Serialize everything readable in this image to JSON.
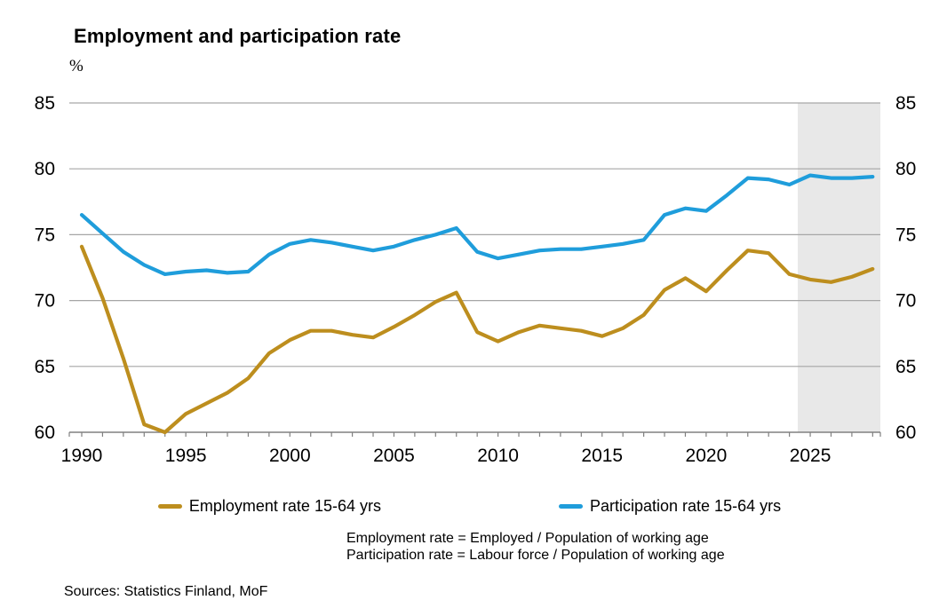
{
  "header": {
    "title": "Employment and participation rate",
    "unit": "%"
  },
  "chart_data": {
    "type": "line",
    "title": "Employment and participation rate",
    "ylabel": "%",
    "xlabel": "",
    "grid": "horizontal",
    "legend_position": "bottom",
    "ylim": [
      60,
      85
    ],
    "yticks": [
      60,
      65,
      70,
      75,
      80,
      85
    ],
    "xlim": [
      1989.4,
      2028.4
    ],
    "xticks_labeled": [
      1990,
      1995,
      2000,
      2005,
      2010,
      2015,
      2020,
      2025
    ],
    "xticks_minor_every": 1,
    "x": [
      1990,
      1991,
      1992,
      1993,
      1994,
      1995,
      1996,
      1997,
      1998,
      1999,
      2000,
      2001,
      2002,
      2003,
      2004,
      2005,
      2006,
      2007,
      2008,
      2009,
      2010,
      2011,
      2012,
      2013,
      2014,
      2015,
      2016,
      2017,
      2018,
      2019,
      2020,
      2021,
      2022,
      2023,
      2024,
      2025,
      2026,
      2027,
      2028
    ],
    "series": [
      {
        "name": "Employment rate 15-64 yrs",
        "color": "#BD8E1E",
        "values": [
          74.1,
          70.2,
          65.6,
          60.6,
          60.0,
          61.4,
          62.2,
          63.0,
          64.1,
          66.0,
          67.0,
          67.7,
          67.7,
          67.4,
          67.2,
          68.0,
          68.9,
          69.9,
          70.6,
          67.6,
          66.9,
          67.6,
          68.1,
          67.9,
          67.7,
          67.3,
          67.9,
          68.9,
          70.8,
          71.7,
          70.7,
          72.3,
          73.8,
          73.6,
          72.0,
          71.6,
          71.4,
          71.8,
          72.4
        ]
      },
      {
        "name": "Participation rate 15-64 yrs",
        "color": "#1F9DDB",
        "values": [
          76.5,
          75.1,
          73.7,
          72.7,
          72.0,
          72.2,
          72.3,
          72.1,
          72.2,
          73.5,
          74.3,
          74.6,
          74.4,
          74.1,
          73.8,
          74.1,
          74.6,
          75.0,
          75.5,
          73.7,
          73.2,
          73.5,
          73.8,
          73.9,
          73.9,
          74.1,
          74.3,
          74.6,
          76.5,
          77.0,
          76.8,
          78.0,
          79.3,
          79.2,
          78.8,
          79.5,
          79.3,
          79.3,
          79.4
        ]
      }
    ],
    "forecast_band": {
      "start": 2024.4,
      "color": "#E8E8E8"
    },
    "colors": {
      "gridline": "#A6A6A6",
      "axis": "#808080",
      "text": "#000000"
    }
  },
  "legend": {
    "items": [
      {
        "label": "Employment rate 15-64 yrs"
      },
      {
        "label": "Participation rate 15-64 yrs"
      }
    ]
  },
  "notes": {
    "line1": "Employment rate = Employed / Population of working age",
    "line2": "Participation rate = Labour force / Population of working age"
  },
  "sources": "Sources: Statistics Finland, MoF"
}
